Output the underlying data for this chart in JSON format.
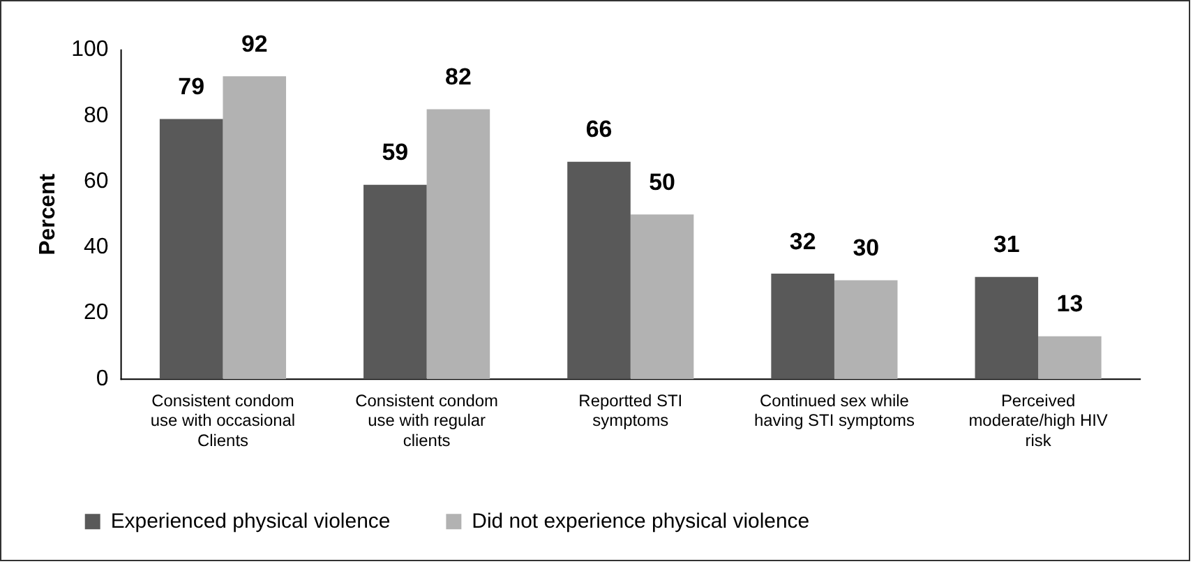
{
  "chart_data": {
    "type": "bar",
    "ylabel": "Percent",
    "categories": [
      "Consistent condom use with occasional Clients",
      "Consistent condom use with regular clients",
      "Reportted STI symptoms",
      "Continued sex while having STI symptoms",
      "Perceived moderate/high HIV risk"
    ],
    "series": [
      {
        "name": "Experienced physical violence",
        "color": "#595959",
        "values": [
          79,
          59,
          66,
          32,
          31
        ]
      },
      {
        "name": "Did not experience physical violence",
        "color": "#b2b2b2",
        "values": [
          92,
          82,
          50,
          30,
          13
        ]
      }
    ],
    "ylim": [
      0,
      100
    ],
    "yticks": [
      0,
      20,
      40,
      60,
      80,
      100
    ],
    "grid": false,
    "legend": "bottom",
    "data_labels": true
  }
}
